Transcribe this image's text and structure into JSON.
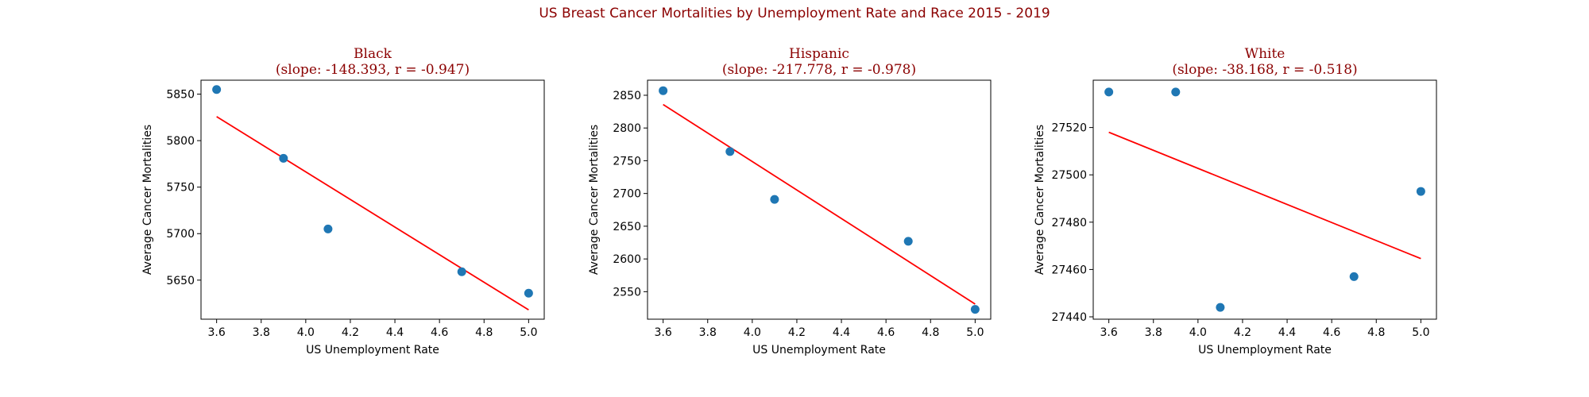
{
  "title": "US Breast Cancer Mortalities by Unemployment Rate and Race 2015 - 2019",
  "colors": {
    "title": "#8b0000",
    "points": "#1f77b4",
    "fit_line": "#ff0000"
  },
  "chart_data": [
    {
      "type": "scatter",
      "title_line1": "Black",
      "title_line2": "(slope: -148.393, r = -0.947)",
      "xlabel": "US Unemployment Rate",
      "ylabel": "Average Cancer Mortalities",
      "xlim": [
        3.53,
        5.07
      ],
      "ylim": [
        5608,
        5865
      ],
      "xticks": [
        3.6,
        3.8,
        4.0,
        4.2,
        4.4,
        4.6,
        4.8,
        5.0
      ],
      "xtick_labels": [
        "3.6",
        "3.8",
        "4.0",
        "4.2",
        "4.4",
        "4.6",
        "4.8",
        "5.0"
      ],
      "yticks": [
        5650,
        5700,
        5750,
        5800,
        5850
      ],
      "ytick_labels": [
        "5650",
        "5700",
        "5750",
        "5800",
        "5850"
      ],
      "x": [
        3.6,
        3.9,
        4.1,
        4.7,
        5.0
      ],
      "y": [
        5855,
        5781,
        5705,
        5659,
        5636
      ],
      "fit": {
        "x": [
          3.6,
          5.0
        ],
        "y": [
          5825.8,
          5618.0
        ]
      }
    },
    {
      "type": "scatter",
      "title_line1": "Hispanic",
      "title_line2": "(slope: -217.778, r = -0.978)",
      "xlabel": "US Unemployment Rate",
      "ylabel": "Average Cancer Mortalities",
      "xlim": [
        3.53,
        5.07
      ],
      "ylim": [
        2508,
        2873
      ],
      "xticks": [
        3.6,
        3.8,
        4.0,
        4.2,
        4.4,
        4.6,
        4.8,
        5.0
      ],
      "xtick_labels": [
        "3.6",
        "3.8",
        "4.0",
        "4.2",
        "4.4",
        "4.6",
        "4.8",
        "5.0"
      ],
      "yticks": [
        2550,
        2600,
        2650,
        2700,
        2750,
        2800,
        2850
      ],
      "ytick_labels": [
        "2550",
        "2600",
        "2650",
        "2700",
        "2750",
        "2800",
        "2850"
      ],
      "x": [
        3.6,
        3.9,
        4.1,
        4.7,
        5.0
      ],
      "y": [
        2857,
        2764,
        2691,
        2627,
        2523
      ],
      "fit": {
        "x": [
          3.6,
          5.0
        ],
        "y": [
          2835.9,
          2531.1
        ]
      }
    },
    {
      "type": "scatter",
      "title_line1": "White",
      "title_line2": "(slope: -38.168, r = -0.518)",
      "xlabel": "US Unemployment Rate",
      "ylabel": "Average Cancer Mortalities",
      "xlim": [
        3.53,
        5.07
      ],
      "ylim": [
        27439,
        27540
      ],
      "xticks": [
        3.6,
        3.8,
        4.0,
        4.2,
        4.4,
        4.6,
        4.8,
        5.0
      ],
      "xtick_labels": [
        "3.6",
        "3.8",
        "4.0",
        "4.2",
        "4.4",
        "4.6",
        "4.8",
        "5.0"
      ],
      "yticks": [
        27440,
        27460,
        27480,
        27500,
        27520
      ],
      "ytick_labels": [
        "27440",
        "27460",
        "27480",
        "27500",
        "27520"
      ],
      "x": [
        3.6,
        3.9,
        4.1,
        4.7,
        5.0
      ],
      "y": [
        27535,
        27535,
        27444,
        27457,
        27493
      ],
      "fit": {
        "x": [
          3.6,
          5.0
        ],
        "y": [
          27518.0,
          27464.6
        ]
      }
    }
  ]
}
